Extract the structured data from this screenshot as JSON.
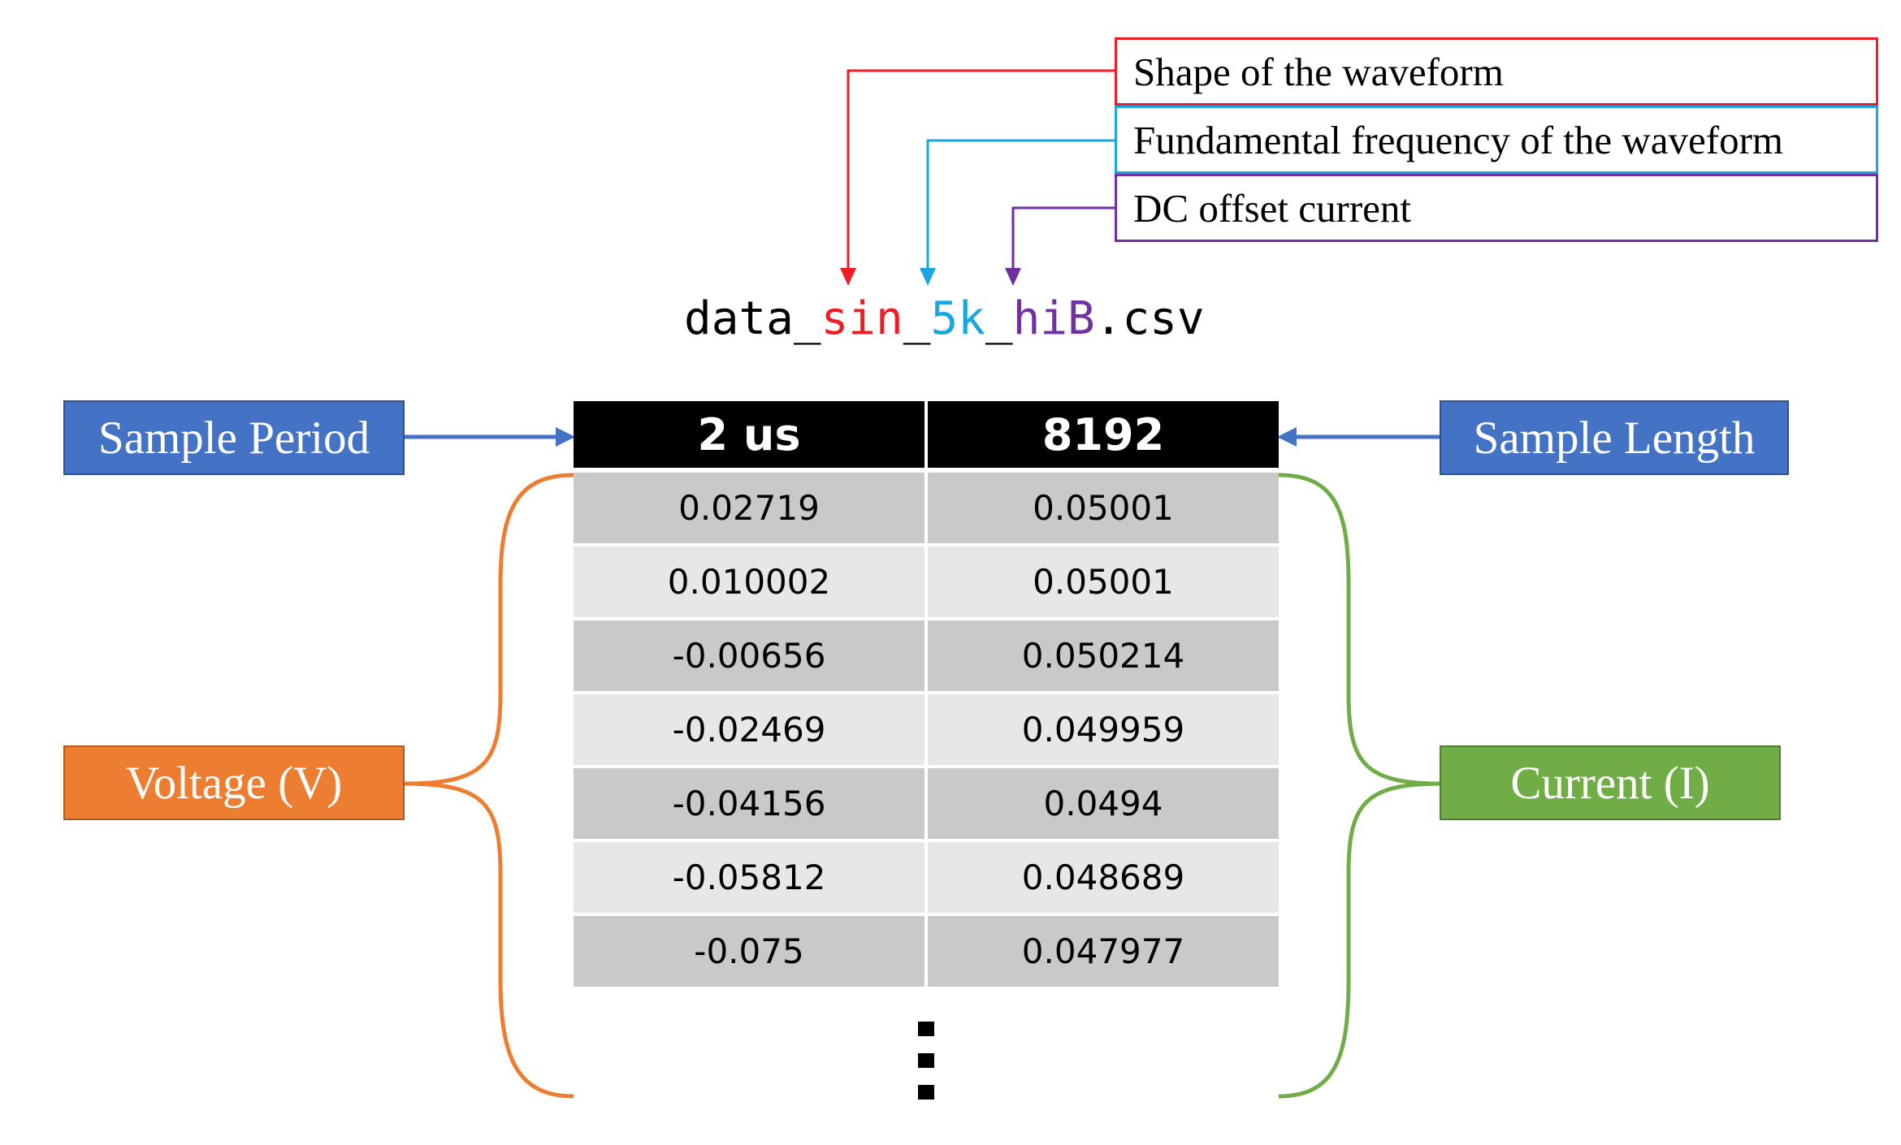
{
  "legend": [
    {
      "text": "Shape of the waveform",
      "color": "#ee1c25"
    },
    {
      "text": "Fundamental frequency of the waveform",
      "color": "#1aa7e0"
    },
    {
      "text": "DC offset current",
      "color": "#7030a0"
    }
  ],
  "filename": {
    "prefix": "data",
    "sep1": "_",
    "shape": "sin",
    "sep2": "_",
    "frequency": "5k",
    "sep3": "_",
    "offset": "hiB",
    "extension": ".csv"
  },
  "labels": {
    "sample_period": "Sample Period",
    "sample_length": "Sample Length",
    "voltage": "Voltage (V)",
    "current": "Current (I)"
  },
  "colors": {
    "blue_box": "#4472c4",
    "orange": "#ed7d31",
    "green": "#70ad47",
    "header_bg": "#000000",
    "row_dark": "#c9c9c9",
    "row_light": "#e7e7e7"
  },
  "table": {
    "header": [
      "2 us",
      "8192"
    ],
    "rows": [
      [
        "0.02719",
        "0.05001"
      ],
      [
        "0.010002",
        "0.05001"
      ],
      [
        "-0.00656",
        "0.050214"
      ],
      [
        "-0.02469",
        "0.049959"
      ],
      [
        "-0.04156",
        "0.0494"
      ],
      [
        "-0.05812",
        "0.048689"
      ],
      [
        "-0.075",
        "0.047977"
      ]
    ],
    "continuation": "⋮"
  }
}
